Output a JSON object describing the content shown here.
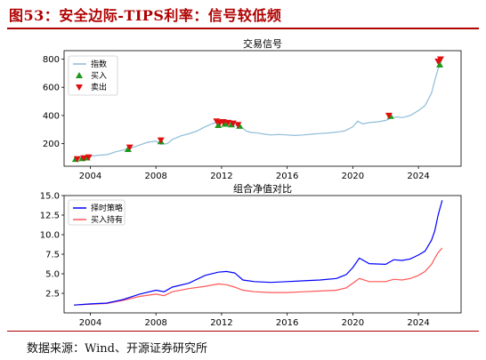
{
  "header": {
    "title": "图53：安全边际-TIPS利率：信号较低频"
  },
  "footer": {
    "source": "数据来源：Wind、开源证券研究所"
  },
  "colors": {
    "title": "#b00000",
    "index": "#8fbcd9",
    "buy": "#1a9a1a",
    "sell": "#e01010",
    "timing": "#0000ff",
    "hold": "#ff5555"
  },
  "chart_data": [
    {
      "type": "line",
      "title": "交易信号",
      "xlim": [
        2002.4,
        2026.6
      ],
      "ylim": [
        40,
        860
      ],
      "x_ticks": [
        2004,
        2008,
        2012,
        2016,
        2020,
        2024
      ],
      "y_ticks": [
        200,
        400,
        600,
        800
      ],
      "legend": {
        "position": "top-left",
        "entries": [
          "指数",
          "买入",
          "卖出"
        ]
      },
      "series": [
        {
          "name": "指数",
          "x": [
            2003.0,
            2003.5,
            2004.0,
            2004.5,
            2005.0,
            2005.5,
            2006.0,
            2006.5,
            2007.0,
            2007.5,
            2008.0,
            2008.3,
            2008.7,
            2009.0,
            2009.5,
            2010.0,
            2010.5,
            2011.0,
            2011.5,
            2011.8,
            2012.0,
            2012.3,
            2012.6,
            2012.9,
            2013.2,
            2013.5,
            2013.8,
            2014.2,
            2014.6,
            2015.0,
            2015.5,
            2016.0,
            2016.5,
            2017.0,
            2017.5,
            2018.0,
            2018.5,
            2019.0,
            2019.5,
            2020.0,
            2020.3,
            2020.6,
            2021.0,
            2021.5,
            2022.0,
            2022.3,
            2022.7,
            2023.0,
            2023.5,
            2024.0,
            2024.4,
            2024.8,
            2025.0,
            2025.2,
            2025.4
          ],
          "values": [
            95,
            100,
            110,
            118,
            122,
            140,
            155,
            170,
            190,
            210,
            218,
            195,
            200,
            230,
            255,
            270,
            290,
            320,
            345,
            350,
            345,
            352,
            340,
            330,
            320,
            290,
            280,
            275,
            268,
            262,
            265,
            262,
            258,
            262,
            268,
            272,
            276,
            282,
            290,
            320,
            360,
            340,
            350,
            355,
            365,
            380,
            390,
            385,
            400,
            435,
            470,
            560,
            650,
            730,
            790
          ]
        },
        {
          "name": "买入",
          "x": [
            2003.1,
            2003.5,
            2003.8,
            2006.3,
            2008.3,
            2011.8,
            2012.2,
            2012.6,
            2013.1,
            2022.3,
            2025.3
          ],
          "values": [
            90,
            95,
            100,
            160,
            215,
            330,
            340,
            335,
            325,
            395,
            760
          ]
        },
        {
          "name": "卖出",
          "x": [
            2003.2,
            2003.6,
            2003.9,
            2006.4,
            2008.3,
            2011.7,
            2011.9,
            2012.1,
            2012.4,
            2012.7,
            2013.0,
            2022.2,
            2025.2,
            2025.35
          ],
          "values": [
            92,
            98,
            105,
            175,
            225,
            360,
            350,
            355,
            350,
            345,
            335,
            400,
            785,
            800
          ]
        }
      ]
    },
    {
      "type": "line",
      "title": "组合净值对比",
      "xlim": [
        2002.4,
        2026.6
      ],
      "ylim": [
        0,
        15
      ],
      "x_ticks": [
        2004,
        2008,
        2012,
        2016,
        2020,
        2024
      ],
      "y_ticks": [
        2.5,
        5.0,
        7.5,
        10.0,
        12.5,
        15.0
      ],
      "legend": {
        "position": "top-left",
        "entries": [
          "择时策略",
          "买入持有"
        ]
      },
      "series": [
        {
          "name": "择时策略",
          "x": [
            2003.0,
            2004.0,
            2005.0,
            2006.0,
            2007.0,
            2008.0,
            2008.5,
            2009.0,
            2010.0,
            2011.0,
            2011.8,
            2012.3,
            2012.8,
            2013.3,
            2014.0,
            2015.0,
            2016.0,
            2017.0,
            2018.0,
            2019.0,
            2019.6,
            2020.0,
            2020.4,
            2021.0,
            2022.0,
            2022.5,
            2023.0,
            2023.5,
            2024.0,
            2024.4,
            2024.8,
            2025.0,
            2025.2,
            2025.45
          ],
          "values": [
            1.0,
            1.15,
            1.25,
            1.7,
            2.4,
            2.9,
            2.7,
            3.3,
            3.8,
            4.8,
            5.2,
            5.3,
            5.1,
            4.2,
            4.0,
            3.9,
            4.0,
            4.1,
            4.2,
            4.4,
            4.9,
            5.8,
            7.0,
            6.3,
            6.2,
            6.8,
            6.7,
            6.9,
            7.4,
            7.9,
            9.3,
            10.5,
            12.5,
            14.4
          ]
        },
        {
          "name": "买入持有",
          "x": [
            2003.0,
            2004.0,
            2005.0,
            2006.0,
            2007.0,
            2008.0,
            2008.5,
            2009.0,
            2010.0,
            2011.0,
            2011.8,
            2012.3,
            2012.8,
            2013.3,
            2014.0,
            2015.0,
            2016.0,
            2017.0,
            2018.0,
            2019.0,
            2019.6,
            2020.0,
            2020.4,
            2021.0,
            2022.0,
            2022.5,
            2023.0,
            2023.5,
            2024.0,
            2024.4,
            2024.8,
            2025.0,
            2025.2,
            2025.45
          ],
          "values": [
            1.0,
            1.1,
            1.2,
            1.6,
            2.1,
            2.4,
            2.2,
            2.7,
            3.1,
            3.4,
            3.7,
            3.6,
            3.3,
            2.9,
            2.7,
            2.6,
            2.6,
            2.7,
            2.8,
            2.9,
            3.2,
            3.8,
            4.4,
            4.0,
            4.0,
            4.3,
            4.2,
            4.4,
            4.8,
            5.3,
            6.2,
            7.0,
            7.7,
            8.3
          ]
        }
      ]
    }
  ]
}
